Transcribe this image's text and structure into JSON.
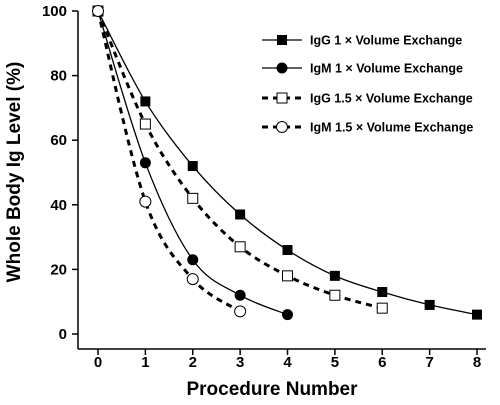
{
  "chart_data": {
    "type": "line",
    "xlabel": "Procedure Number",
    "ylabel": "Whole Body Ig Level (%)",
    "xlim": [
      0,
      8
    ],
    "ylim": [
      0,
      100
    ],
    "xticks": [
      0,
      1,
      2,
      3,
      4,
      5,
      6,
      7,
      8
    ],
    "yticks": [
      0,
      20,
      40,
      60,
      80,
      100
    ],
    "grid": false,
    "legend_position": "top-right",
    "series": [
      {
        "name": "IgG 1 × Volume Exchange",
        "marker": "filled-square",
        "line": "solid",
        "x": [
          0,
          1,
          2,
          3,
          4,
          5,
          6,
          7,
          8
        ],
        "y": [
          100,
          72,
          52,
          37,
          26,
          18,
          13,
          9,
          6
        ]
      },
      {
        "name": "IgM 1 × Volume Exchange",
        "marker": "filled-circle",
        "line": "solid",
        "x": [
          0,
          1,
          2,
          3,
          4
        ],
        "y": [
          100,
          53,
          23,
          12,
          6
        ]
      },
      {
        "name": "IgG 1.5 × Volume Exchange",
        "marker": "open-square",
        "line": "dashed",
        "x": [
          0,
          1,
          2,
          3,
          4,
          5,
          6
        ],
        "y": [
          100,
          65,
          42,
          27,
          18,
          12,
          8
        ]
      },
      {
        "name": "IgM 1.5 × Volume Exchange",
        "marker": "open-circle",
        "line": "dashed",
        "x": [
          0,
          1,
          2,
          3
        ],
        "y": [
          100,
          41,
          17,
          7
        ]
      }
    ]
  }
}
